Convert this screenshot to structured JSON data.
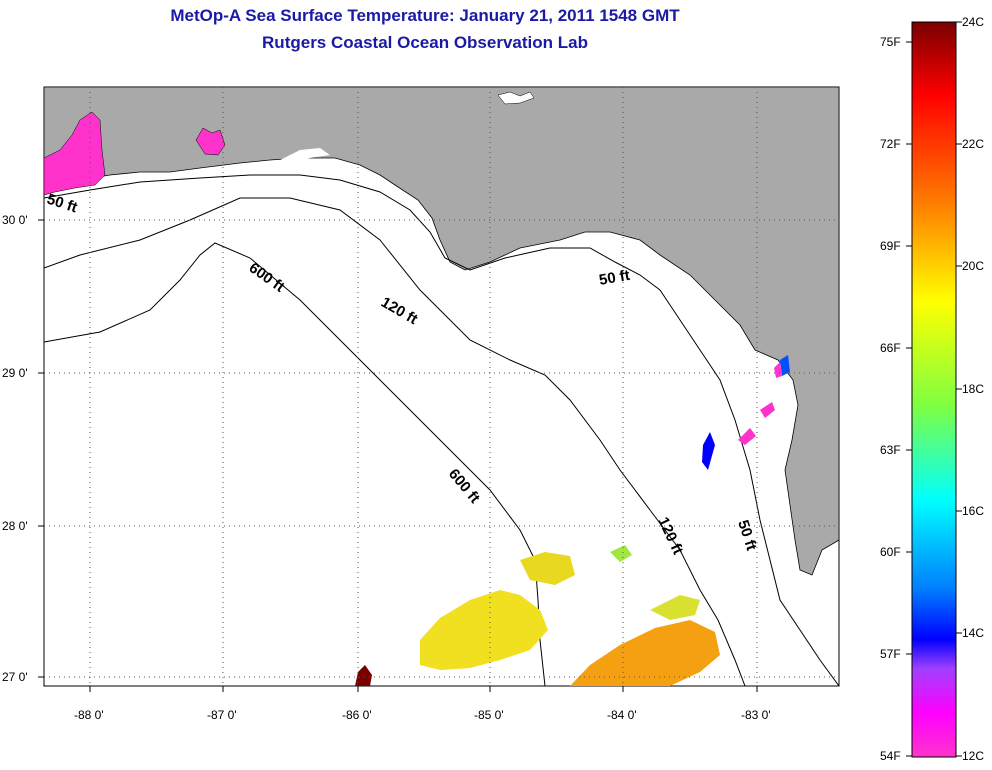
{
  "header": {
    "title": "MetOp-A Sea Surface Temperature:  January 21, 2011 1548 GMT",
    "subtitle": "Rutgers Coastal Ocean Observation Lab"
  },
  "map": {
    "colors": {
      "land": "#a9a9a9",
      "water": "#ffffff",
      "grid": "#555555",
      "title": "#1a1aa6"
    },
    "lon_ticks": [
      "-88 0'",
      "-87 0'",
      "-86 0'",
      "-85 0'",
      "-84 0'",
      "-83 0'"
    ],
    "lat_ticks": [
      "30 0'",
      "29 0'",
      "28 0'",
      "27 0'"
    ],
    "contour_labels": {
      "c50_west": "50 ft",
      "c50_east": "50 ft",
      "c50_south": "50 ft",
      "c120_north": "120 ft",
      "c120_south": "120 ft",
      "c600_north": "600 ft",
      "c600_south": "600 ft"
    }
  },
  "colorbar": {
    "fahrenheit_labels": [
      "75F",
      "72F",
      "69F",
      "66F",
      "63F",
      "60F",
      "57F",
      "54F"
    ],
    "celsius_labels": [
      "24C",
      "22C",
      "20C",
      "18C",
      "16C",
      "14C",
      "12C"
    ],
    "gradient": [
      "#7a0000",
      "#ff0000",
      "#ff8000",
      "#ffff00",
      "#80ff40",
      "#00ffff",
      "#0080ff",
      "#0000ff",
      "#a040ff",
      "#ff00ff",
      "#ff33cc"
    ]
  }
}
